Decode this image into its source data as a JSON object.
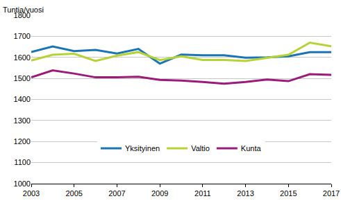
{
  "chart_data": {
    "type": "line",
    "ylabel": "Tuntia/vuosi",
    "x": [
      2003,
      2004,
      2005,
      2006,
      2007,
      2008,
      2009,
      2010,
      2011,
      2012,
      2013,
      2014,
      2015,
      2016,
      2017
    ],
    "series": [
      {
        "name": "Yksityinen",
        "color": "#1a75b4",
        "values": [
          1625,
          1652,
          1630,
          1635,
          1618,
          1640,
          1570,
          1613,
          1610,
          1610,
          1598,
          1600,
          1605,
          1625,
          1625
        ]
      },
      {
        "name": "Valtio",
        "color": "#b5d334",
        "values": [
          1585,
          1612,
          1617,
          1583,
          1608,
          1625,
          1587,
          1605,
          1588,
          1588,
          1583,
          1598,
          1612,
          1670,
          1653
        ]
      },
      {
        "name": "Kunta",
        "color": "#9c1a7a",
        "values": [
          1505,
          1538,
          1523,
          1505,
          1505,
          1508,
          1493,
          1490,
          1483,
          1475,
          1483,
          1495,
          1487,
          1520,
          1517
        ]
      }
    ],
    "xlim": [
      2003,
      2017
    ],
    "xticks": [
      2003,
      2005,
      2007,
      2009,
      2011,
      2013,
      2015,
      2017
    ],
    "ylim": [
      1000,
      1800
    ],
    "yticks": [
      1000,
      1100,
      1200,
      1300,
      1400,
      1500,
      1600,
      1700,
      1800
    ],
    "grid": true,
    "legend": "bottom"
  }
}
